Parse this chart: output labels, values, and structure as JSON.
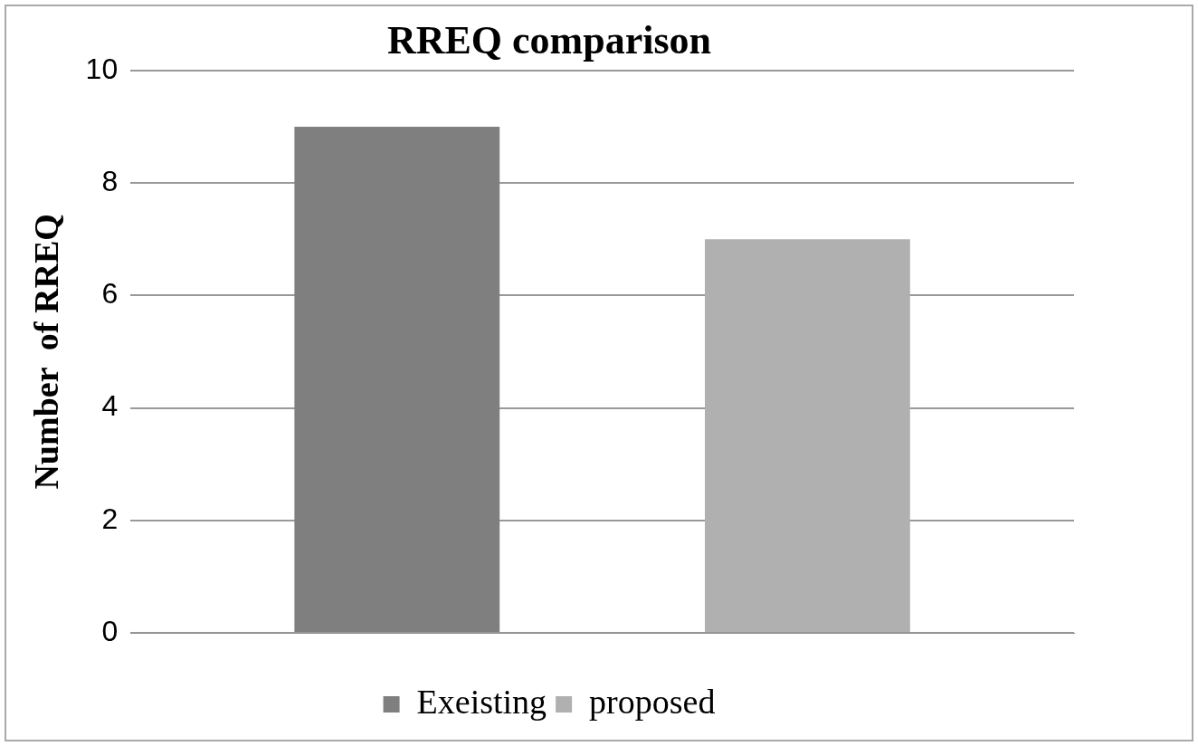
{
  "chart_data": {
    "type": "bar",
    "title": "RREQ comparison",
    "ylabel": "Number  of RREQ",
    "categories": [
      null
    ],
    "series": [
      {
        "name": "Exeisting",
        "color": "#7f7f7f",
        "values": [
          9
        ]
      },
      {
        "name": "proposed",
        "color": "#b0b0b0",
        "values": [
          7
        ]
      }
    ],
    "ylim": [
      0,
      10
    ],
    "yticks": [
      0,
      2,
      4,
      6,
      8,
      10
    ],
    "grid": "y",
    "legend": "bottom"
  }
}
